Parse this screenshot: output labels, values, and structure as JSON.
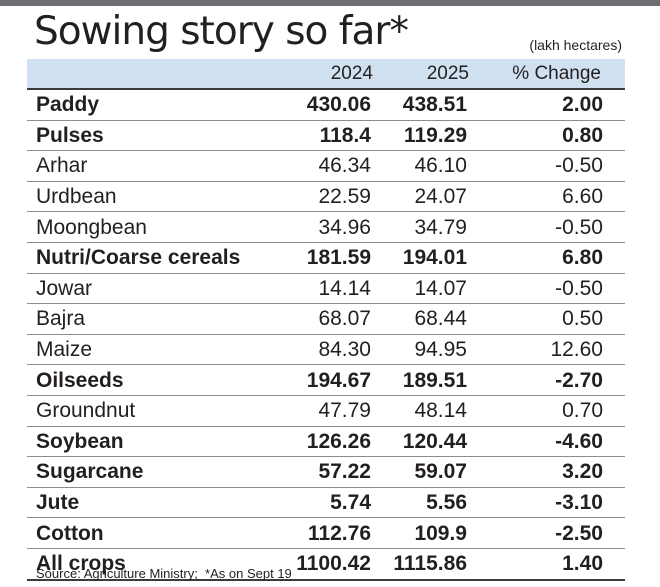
{
  "title": "Sowing story so far*",
  "unit": "(lakh hectares)",
  "table": {
    "headers": {
      "name": "",
      "y1": "2024",
      "y2": "2025",
      "change": "% Change"
    },
    "rows": [
      {
        "name": "Paddy",
        "y1": "430.06",
        "y2": "438.51",
        "change": "2.00",
        "bold": true
      },
      {
        "name": "Pulses",
        "y1": "118.4",
        "y2": "119.29",
        "change": "0.80",
        "bold": true
      },
      {
        "name": "Arhar",
        "y1": "46.34",
        "y2": "46.10",
        "change": "-0.50",
        "bold": false
      },
      {
        "name": "Urdbean",
        "y1": "22.59",
        "y2": "24.07",
        "change": "6.60",
        "bold": false
      },
      {
        "name": "Moongbean",
        "y1": "34.96",
        "y2": "34.79",
        "change": "-0.50",
        "bold": false
      },
      {
        "name": "Nutri/Coarse cereals",
        "y1": "181.59",
        "y2": "194.01",
        "change": "6.80",
        "bold": true
      },
      {
        "name": "Jowar",
        "y1": "14.14",
        "y2": "14.07",
        "change": "-0.50",
        "bold": false
      },
      {
        "name": "Bajra",
        "y1": "68.07",
        "y2": "68.44",
        "change": "0.50",
        "bold": false
      },
      {
        "name": "Maize",
        "y1": "84.30",
        "y2": "94.95",
        "change": "12.60",
        "bold": false
      },
      {
        "name": "Oilseeds",
        "y1": "194.67",
        "y2": "189.51",
        "change": "-2.70",
        "bold": true
      },
      {
        "name": "Groundnut",
        "y1": "47.79",
        "y2": "48.14",
        "change": "0.70",
        "bold": false
      },
      {
        "name": "Soybean",
        "y1": "126.26",
        "y2": "120.44",
        "change": "-4.60",
        "bold": true
      },
      {
        "name": "Sugarcane",
        "y1": "57.22",
        "y2": "59.07",
        "change": "3.20",
        "bold": true
      },
      {
        "name": "Jute",
        "y1": "5.74",
        "y2": "5.56",
        "change": "-3.10",
        "bold": true
      },
      {
        "name": "Cotton",
        "y1": "112.76",
        "y2": "109.9",
        "change": "-2.50",
        "bold": true
      },
      {
        "name": "All crops",
        "y1": "1100.42",
        "y2": "1115.86",
        "change": "1.40",
        "bold": true
      }
    ]
  },
  "source": "Source: Agriculture Ministry;  *As on Sept 19",
  "colors": {
    "header_bg": "#d0e0f0",
    "top_rule": "#6d6e71",
    "text": "#231f20"
  }
}
